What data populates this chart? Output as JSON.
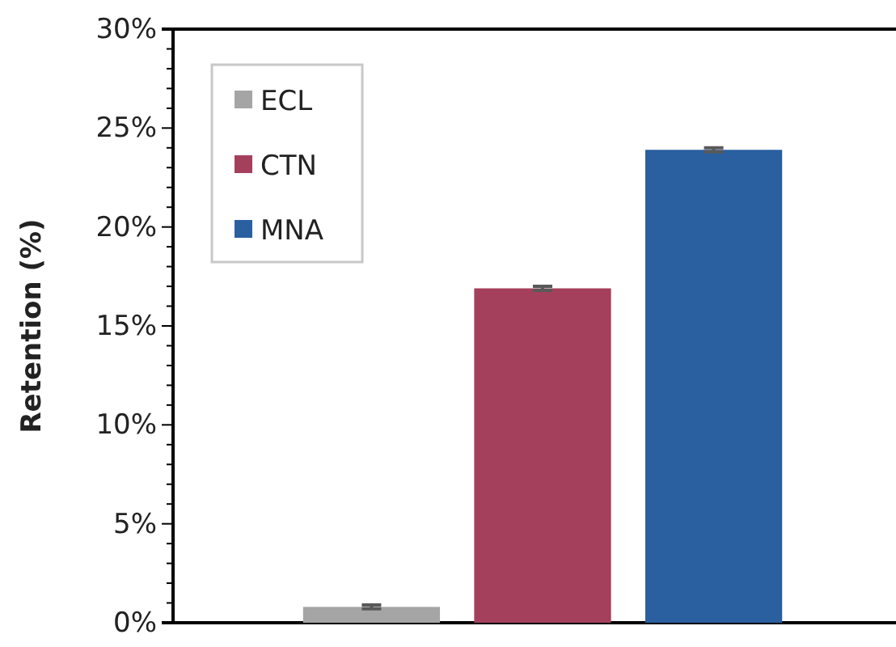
{
  "chart_data": {
    "type": "bar",
    "ylabel": "Retention (%)",
    "categories": [
      null,
      null,
      null
    ],
    "series": [
      {
        "name": "ECL",
        "color": "#a5a5a5",
        "values": [
          0.8,
          null,
          null
        ],
        "errors": [
          0.1,
          null,
          null
        ]
      },
      {
        "name": "CTN",
        "color": "#a5405c",
        "values": [
          null,
          16.9,
          null
        ],
        "errors": [
          null,
          0.1,
          null
        ]
      },
      {
        "name": "MNA",
        "color": "#2a5fa0",
        "values": [
          null,
          null,
          23.9
        ],
        "errors": [
          null,
          null,
          0.1
        ]
      }
    ],
    "ylim": [
      0,
      30
    ],
    "yticks": [
      {
        "value": 0,
        "label": "0%"
      },
      {
        "value": 5,
        "label": "5%"
      },
      {
        "value": 10,
        "label": "10%"
      },
      {
        "value": 15,
        "label": "15%"
      },
      {
        "value": 20,
        "label": "20%"
      },
      {
        "value": 25,
        "label": "25%"
      },
      {
        "value": 30,
        "label": "30%"
      }
    ],
    "legend": "top left",
    "grid": false
  }
}
